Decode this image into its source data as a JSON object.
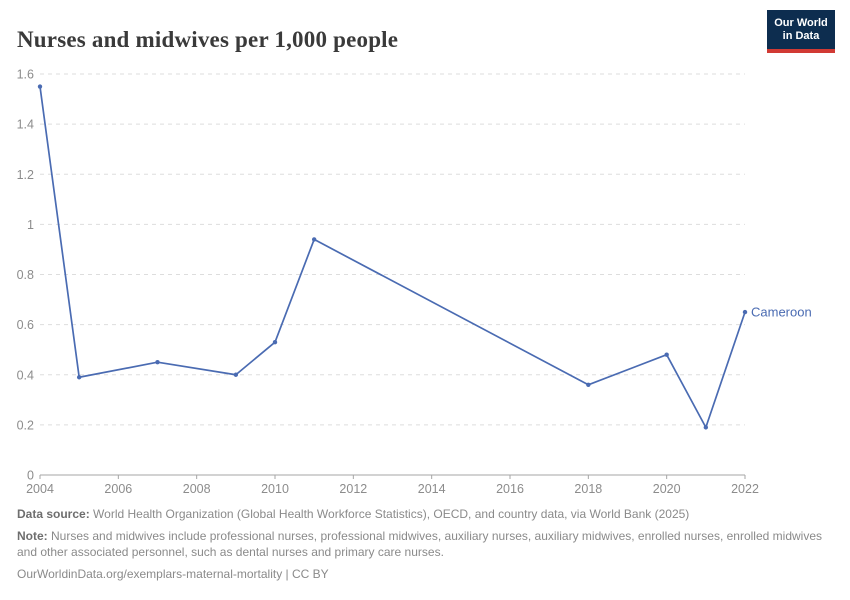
{
  "header": {
    "title": "Nurses and midwives per 1,000 people"
  },
  "logo": {
    "line1": "Our World",
    "line2": "in Data",
    "bg_color": "#0d2d4f",
    "accent_color": "#d13a34"
  },
  "chart_data": {
    "type": "line",
    "title": "Nurses and midwives per 1,000 people",
    "xlabel": "",
    "ylabel": "",
    "xlim": [
      2004,
      2022
    ],
    "ylim": [
      0,
      1.6
    ],
    "xticks": [
      2004,
      2006,
      2008,
      2010,
      2012,
      2014,
      2016,
      2018,
      2020,
      2022
    ],
    "yticks": [
      0,
      0.2,
      0.4,
      0.6,
      0.8,
      1,
      1.2,
      1.4,
      1.6
    ],
    "grid": "horizontal-dashed",
    "legend_position": "end-of-line",
    "series": [
      {
        "name": "Cameroon",
        "color": "#4a6bb2",
        "points": [
          [
            2004,
            1.55
          ],
          [
            2005,
            0.39
          ],
          [
            2007,
            0.45
          ],
          [
            2009,
            0.4
          ],
          [
            2010,
            0.53
          ],
          [
            2011,
            0.94
          ],
          [
            2018,
            0.36
          ],
          [
            2020,
            0.48
          ],
          [
            2021,
            0.19
          ],
          [
            2022,
            0.65
          ]
        ]
      }
    ]
  },
  "footer": {
    "datasource_label": "Data source:",
    "datasource_text": " World Health Organization (Global Health Workforce Statistics), OECD, and country data, via World Bank (2025)",
    "note_label": "Note:",
    "note_text": " Nurses and midwives include professional nurses, professional midwives, auxiliary nurses, auxiliary midwives, enrolled nurses, enrolled midwives and other associated personnel, such as dental nurses and primary care nurses.",
    "url_text": "OurWorldinData.org/exemplars-maternal-mortality | CC BY"
  },
  "colors": {
    "line": "#4a6bb2",
    "axis": "#a5a5a5",
    "grid": "#dddddd",
    "tick_label": "#8c8c8c",
    "title": "#3a3a3a",
    "footer_text": "#8a8a8a",
    "footer_bold": "#6e6e6e"
  }
}
